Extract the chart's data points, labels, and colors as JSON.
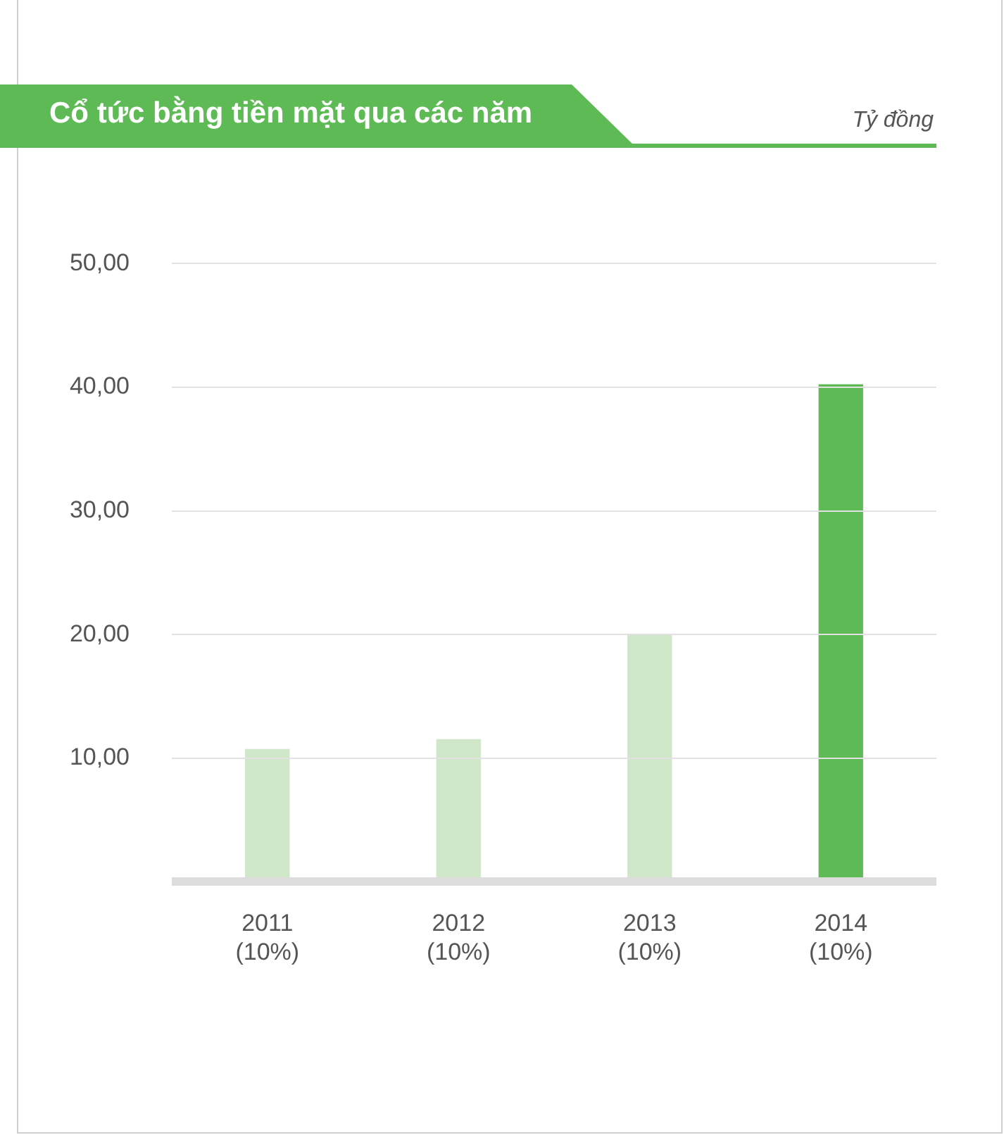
{
  "chart_data": {
    "type": "bar",
    "title": "Cổ tức bằng tiền mặt qua các năm",
    "annotations": [
      "Tỷ đồng"
    ],
    "categories": [
      "2011 (10%)",
      "2012 (10%)",
      "2013 (10%)",
      "2014 (10%)"
    ],
    "values": [
      10.7,
      11.5,
      20.0,
      40.2
    ],
    "colors": [
      "#cfe6c8",
      "#cfe6c8",
      "#cfe6c8",
      "#5dba55"
    ],
    "ylim": [
      0,
      50
    ],
    "yticks": [
      {
        "value": 0,
        "label": null
      },
      {
        "value": 10,
        "label": "10,00"
      },
      {
        "value": 20,
        "label": "20,00"
      },
      {
        "value": 30,
        "label": "30,00"
      },
      {
        "value": 40,
        "label": "40,00"
      },
      {
        "value": 50,
        "label": "50,00"
      }
    ],
    "grid": "y",
    "legend": false
  }
}
